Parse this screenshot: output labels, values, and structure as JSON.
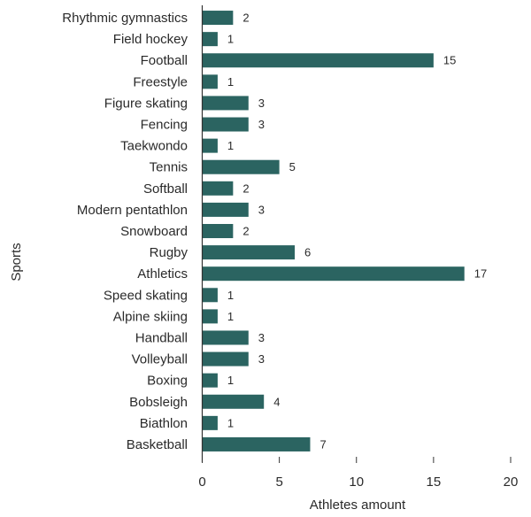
{
  "chart_data": {
    "type": "bar",
    "orientation": "horizontal",
    "categories": [
      "Rhythmic gymnastics",
      "Field hockey",
      "Football",
      "Freestyle",
      "Figure skating",
      "Fencing",
      "Taekwondo",
      "Tennis",
      "Softball",
      "Modern pentathlon",
      "Snowboard",
      "Rugby",
      "Athletics",
      "Speed skating",
      "Alpine skiing",
      "Handball",
      "Volleyball",
      "Boxing",
      "Bobsleigh",
      "Biathlon",
      "Basketball"
    ],
    "values": [
      2,
      1,
      15,
      1,
      3,
      3,
      1,
      5,
      2,
      3,
      2,
      6,
      17,
      1,
      1,
      3,
      3,
      1,
      4,
      1,
      7
    ],
    "xlabel": "Athletes amount",
    "ylabel": "Sports",
    "xlim": [
      0,
      20
    ],
    "xticks": [
      0,
      5,
      10,
      15,
      20
    ],
    "bar_color": "#2b6461",
    "show_data_labels": true,
    "grid": false,
    "legend": "none"
  }
}
